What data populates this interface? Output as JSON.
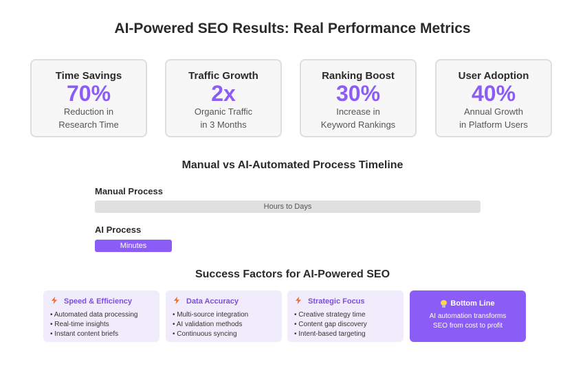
{
  "page_title": "AI-Powered SEO Results: Real Performance Metrics",
  "metrics": [
    {
      "label": "Time Savings",
      "value": "70%",
      "desc1": "Reduction in",
      "desc2": "Research Time"
    },
    {
      "label": "Traffic Growth",
      "value": "2x",
      "desc1": "Organic Traffic",
      "desc2": "in 3 Months"
    },
    {
      "label": "Ranking Boost",
      "value": "30%",
      "desc1": "Increase in",
      "desc2": "Keyword Rankings"
    },
    {
      "label": "User Adoption",
      "value": "40%",
      "desc1": "Annual Growth",
      "desc2": "in Platform Users"
    }
  ],
  "timeline": {
    "title": "Manual vs AI-Automated Process Timeline",
    "manual_label": "Manual Process",
    "manual_bar": "Hours to Days",
    "ai_label": "AI Process",
    "ai_bar": "Minutes"
  },
  "factors": {
    "title": "Success Factors for AI-Powered SEO",
    "cards": [
      {
        "icon": "lightning-icon",
        "title": "Speed & Efficiency",
        "items": [
          "Automated data processing",
          "Real-time insights",
          "Instant content briefs"
        ]
      },
      {
        "icon": "lightning-icon",
        "title": "Data Accuracy",
        "items": [
          "Multi-source integration",
          "AI validation methods",
          "Continuous syncing"
        ]
      },
      {
        "icon": "lightning-icon",
        "title": "Strategic Focus",
        "items": [
          "Creative strategy time",
          "Content gap discovery",
          "Intent-based targeting"
        ]
      }
    ],
    "bottom_line": {
      "icon": "lightbulb-icon",
      "title": "Bottom Line",
      "text": "AI automation transforms SEO from cost to profit"
    }
  },
  "colors": {
    "accent": "#8b5cf6",
    "card_bg": "#f7f7f8",
    "factor_bg": "#f1ecfb",
    "icon_orange": "#f26d2d"
  }
}
